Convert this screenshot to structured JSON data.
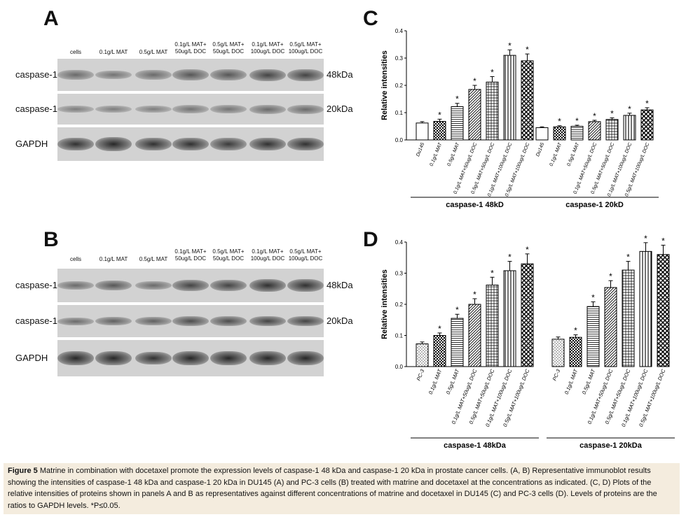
{
  "panel_labels": {
    "a": "A",
    "b": "B",
    "c": "C",
    "d": "D"
  },
  "blot_a": {
    "lanes": [
      "cells",
      "0.1g/L MAT",
      "0.5g/L MAT",
      "0.1g/L MAT+\n50ug/L DOC",
      "0.5g/L MAT+\n50ug/L DOC",
      "0.1g/L MAT+\n100ug/L DOC",
      "0.5g/L MAT+\n100ug/L DOC"
    ],
    "rows": [
      {
        "left": "caspase-1",
        "right": "48kDa"
      },
      {
        "left": "caspase-1",
        "right": "20kDa"
      },
      {
        "left": "GAPDH",
        "right": ""
      }
    ]
  },
  "blot_b": {
    "lanes": [
      "cells",
      "0.1g/L MAT",
      "0.5g/L MAT",
      "0.1g/L MAT+\n50ug/L DOC",
      "0.5g/L MAT+\n50ug/L DOC",
      "0.1g/L MAT+\n100ug/L DOC",
      "0.5g/L MAT+\n100ug/L DOC"
    ],
    "rows": [
      {
        "left": "caspase-1",
        "right": "48kDa"
      },
      {
        "left": "caspase-1",
        "right": "20kDa"
      },
      {
        "left": "GAPDH",
        "right": ""
      }
    ]
  },
  "chart_data": [
    {
      "type": "bar",
      "panel": "C",
      "ylabel": "Relative intensities",
      "ylim": [
        0,
        0.4
      ],
      "yticks": [
        "0.0",
        "0.1",
        "0.2",
        "0.3",
        "0.4"
      ],
      "groups": [
        {
          "name": "caspase-1 48kD",
          "categories": [
            "Du145",
            "0.1g/L MAT",
            "0.5g/L MAT",
            "0.1g/L MAT+50ug/L DOC",
            "0.5g/L MAT+50ug/L DOC",
            "0.1g/L MAT+100ug/L DOC",
            "0.5g/L MAT+100ug/L DOC"
          ],
          "values": [
            0.062,
            0.068,
            0.122,
            0.185,
            0.212,
            0.31,
            0.29
          ],
          "errors": [
            0.005,
            0.008,
            0.012,
            0.015,
            0.02,
            0.02,
            0.025
          ],
          "significant": [
            false,
            true,
            true,
            true,
            true,
            true,
            true
          ]
        },
        {
          "name": "caspase-1 20kD",
          "categories": [
            "Du145",
            "0.1g/L MAT",
            "0.5g/L MAT",
            "0.1g/L MAT+50ug/L DOC",
            "0.5g/L MAT+50ug/L DOC",
            "0.1g/L MAT+100ug/L DOC",
            "0.5g/L MAT+100ug/L DOC"
          ],
          "values": [
            0.045,
            0.048,
            0.05,
            0.067,
            0.075,
            0.09,
            0.11
          ],
          "errors": [
            0.003,
            0.004,
            0.004,
            0.005,
            0.006,
            0.008,
            0.008
          ],
          "significant": [
            false,
            true,
            true,
            true,
            true,
            true,
            true
          ]
        }
      ]
    },
    {
      "type": "bar",
      "panel": "D",
      "ylabel": "Relative intensities",
      "ylim": [
        0,
        0.4
      ],
      "yticks": [
        "0.0",
        "0.1",
        "0.2",
        "0.3",
        "0.4"
      ],
      "groups": [
        {
          "name": "caspase-1 48kDa",
          "categories": [
            "PC-3",
            "0.1g/L MAT",
            "0.5g/L MAT",
            "0.1g/L MAT+50ug/L DOC",
            "0.5g/L MAT+50ug/L DOC",
            "0.1g/L MAT+100ug/L DOC",
            "0.5g/L MAT+100ug/L DOC"
          ],
          "values": [
            0.073,
            0.1,
            0.155,
            0.2,
            0.262,
            0.308,
            0.33
          ],
          "errors": [
            0.006,
            0.008,
            0.013,
            0.018,
            0.025,
            0.03,
            0.032
          ],
          "significant": [
            false,
            true,
            true,
            true,
            true,
            true,
            true
          ]
        },
        {
          "name": "caspase-1 20kDa",
          "categories": [
            "PC-3",
            "0.1g/L MAT",
            "0.5g/L MAT",
            "0.1g/L MAT+50ug/L DOC",
            "0.5g/L MAT+50ug/L DOC",
            "0.1g/L MAT+100ug/L DOC",
            "0.5g/L MAT+100ug/L DOC"
          ],
          "values": [
            0.088,
            0.094,
            0.193,
            0.254,
            0.31,
            0.37,
            0.36
          ],
          "errors": [
            0.007,
            0.008,
            0.015,
            0.022,
            0.028,
            0.028,
            0.03
          ],
          "significant": [
            false,
            true,
            true,
            true,
            true,
            true,
            true
          ]
        }
      ]
    }
  ],
  "caption": {
    "figure_label": "Figure 5",
    "text": " Matrine in combination with docetaxel promote the expression levels of caspase-1 48 kDa and caspase-1 20 kDa in prostate cancer cells. (A, B) Representative immunoblot results showing the intensities of caspase-1 48 kDa and caspase-1 20 kDa in DU145 (A) and PC-3 cells (B) treated with matrine and docetaxel at the concentrations as indicated. (C, D) Plots of the relative intensities of proteins shown in panels A and B as representatives against different concentrations of matrine and docetaxel in DU145 (C) and PC-3 cells (D). Levels of proteins are the ratios to GAPDH levels. *P≤0.05."
  }
}
